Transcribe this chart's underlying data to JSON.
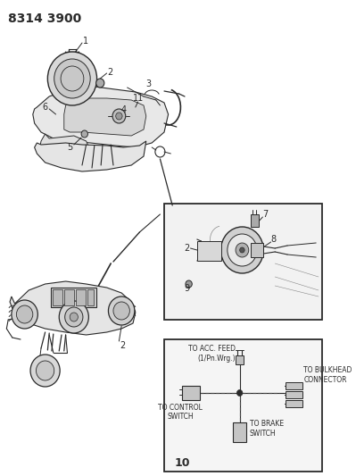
{
  "title": "8314 3900",
  "bg_color": "#ffffff",
  "fg_color": "#2a2a2a",
  "lc": "#2a2a2a",
  "title_fontsize": 10,
  "fig_width": 3.99,
  "fig_height": 5.33,
  "dpi": 100,
  "wiring_labels": {
    "acc_feed": "TO ACC. FEED\n(1/Pn.Wrg.)",
    "bulkhead": "TO BULKHEAD\nCONNECTOR",
    "control": "TO CONTROL\nSWITCH",
    "brake": "TO BRAKE\nSWITCH",
    "num10": "10"
  }
}
